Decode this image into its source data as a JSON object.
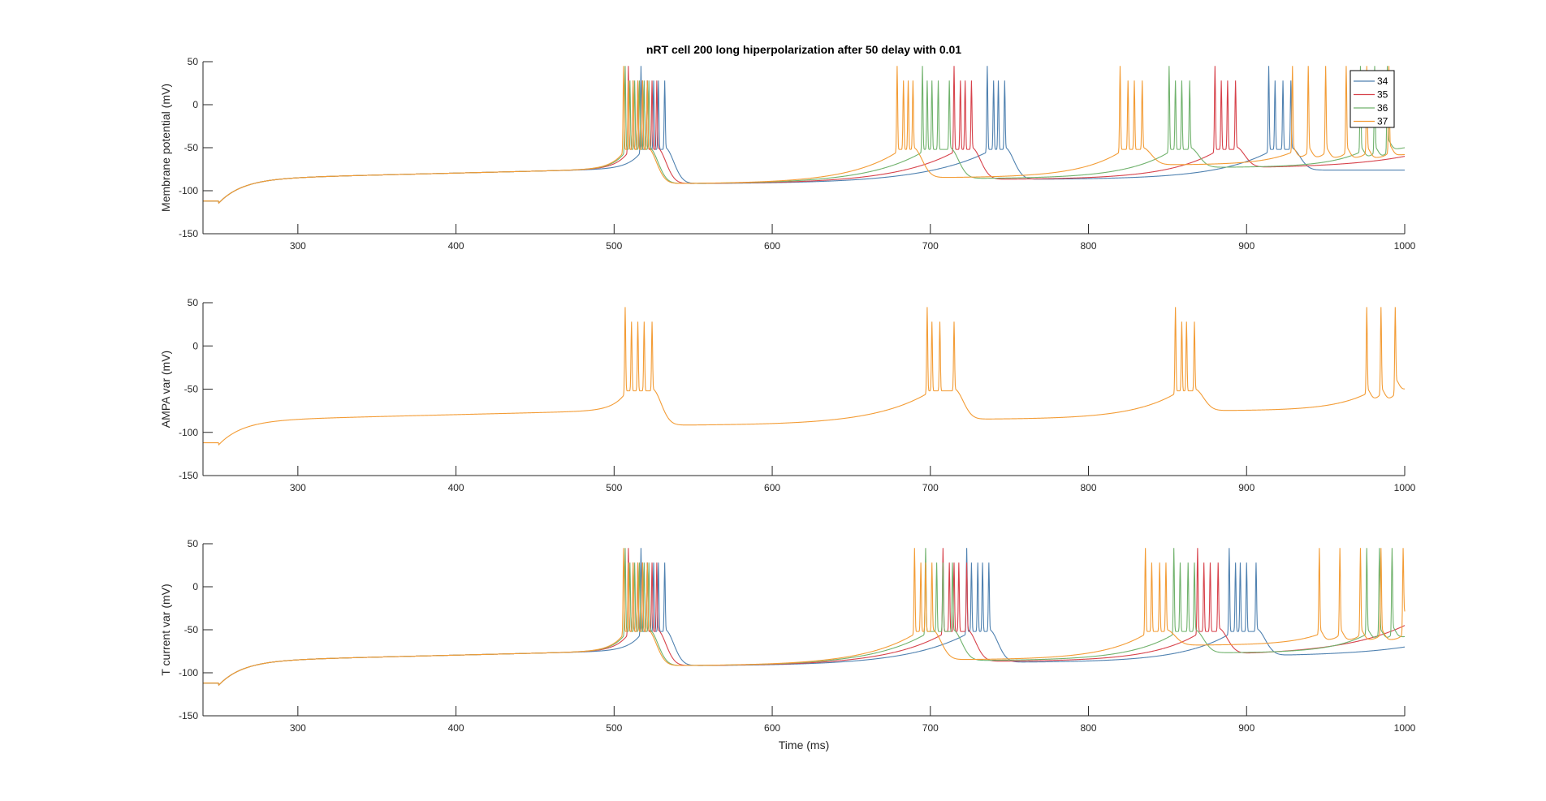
{
  "chart_data": {
    "type": "line",
    "title": "nRT cell 200 long hiperpolarization after 50 delay with 0.01",
    "xlabel": "Time (ms)",
    "xlim": [
      240,
      1000
    ],
    "xticks": [
      300,
      400,
      500,
      600,
      700,
      800,
      900,
      1000
    ],
    "ylim": [
      -150,
      50
    ],
    "yticks": [
      -150,
      -100,
      -50,
      0,
      50
    ],
    "legend": {
      "placement": "top-right",
      "entries": [
        "34",
        "35",
        "36",
        "37"
      ]
    },
    "colors": {
      "34": "#4f81b0",
      "35": "#d7424b",
      "36": "#70b26c",
      "37": "#f39c35"
    },
    "initial_value_mV": -112,
    "spike_peak_mV": 45,
    "panels": [
      {
        "ylabel": "Membrane potential (mV)",
        "series": [
          {
            "name": "34",
            "bursts": [
              {
                "spikes": [
                  517,
                  521,
                  525,
                  528,
                  532
                ],
                "trough": -92
              },
              {
                "spikes": [
                  736,
                  740,
                  743,
                  747
                ],
                "trough": -87
              },
              {
                "spikes": [
                  914,
                  918,
                  923,
                  928
                ],
                "trough": -76
              }
            ],
            "end": -76
          },
          {
            "name": "35",
            "bursts": [
              {
                "spikes": [
                  509,
                  512,
                  515,
                  518,
                  521,
                  524,
                  527
                ],
                "trough": -92
              },
              {
                "spikes": [
                  715,
                  719,
                  722,
                  726
                ],
                "trough": -87
              },
              {
                "spikes": [
                  880,
                  884,
                  888,
                  893
                ],
                "trough": -74
              }
            ],
            "end": -60
          },
          {
            "name": "36",
            "bursts": [
              {
                "spikes": [
                  507,
                  510,
                  513,
                  516,
                  519,
                  522
                ],
                "trough": -92
              },
              {
                "spikes": [
                  695,
                  698,
                  701,
                  705,
                  712
                ],
                "trough": -86
              },
              {
                "spikes": [
                  851,
                  855,
                  859,
                  864
                ],
                "trough": -73
              },
              {
                "spikes": [
                  972
                ],
                "trough": -62
              },
              {
                "spikes": [
                  981
                ],
                "trough": -62
              },
              {
                "spikes": [
                  989
                ],
                "trough": -62
              }
            ],
            "end": -50
          },
          {
            "name": "37",
            "bursts": [
              {
                "spikes": [
                  506,
                  509,
                  512,
                  515,
                  518,
                  521
                ],
                "trough": -92
              },
              {
                "spikes": [
                  679,
                  683,
                  686,
                  689
                ],
                "trough": -85
              },
              {
                "spikes": [
                  820,
                  825,
                  829,
                  834
                ],
                "trough": -70
              },
              {
                "spikes": [
                  929
                ],
                "trough": -62
              },
              {
                "spikes": [
                  939
                ],
                "trough": -62
              },
              {
                "spikes": [
                  950
                ],
                "trough": -62
              },
              {
                "spikes": [
                  963
                ],
                "trough": -62
              },
              {
                "spikes": [
                  976
                ],
                "trough": -62
              },
              {
                "spikes": [
                  990
                ],
                "trough": -62
              }
            ],
            "end": -58
          }
        ]
      },
      {
        "ylabel": "AMPA var (mV)",
        "series": [
          {
            "name": "37",
            "bursts": [
              {
                "spikes": [
                  507,
                  511,
                  515,
                  519,
                  524
                ],
                "trough": -92
              },
              {
                "spikes": [
                  698,
                  701,
                  706,
                  715
                ],
                "trough": -85
              },
              {
                "spikes": [
                  855,
                  859,
                  862,
                  867
                ],
                "trough": -75
              },
              {
                "spikes": [
                  976
                ],
                "trough": -63
              },
              {
                "spikes": [
                  985
                ],
                "trough": -63
              },
              {
                "spikes": [
                  994
                ],
                "trough": -63
              }
            ],
            "end": -50
          }
        ]
      },
      {
        "ylabel": "T current var (mV)",
        "series": [
          {
            "name": "34",
            "bursts": [
              {
                "spikes": [
                  517,
                  521,
                  525,
                  528,
                  532
                ],
                "trough": -92
              },
              {
                "spikes": [
                  723,
                  726,
                  730,
                  733,
                  737
                ],
                "trough": -88
              },
              {
                "spikes": [
                  889,
                  893,
                  896,
                  900,
                  906
                ],
                "trough": -81
              }
            ],
            "end": -70
          },
          {
            "name": "35",
            "bursts": [
              {
                "spikes": [
                  509,
                  512,
                  515,
                  518,
                  521,
                  524,
                  527
                ],
                "trough": -92
              },
              {
                "spikes": [
                  708,
                  712,
                  715,
                  718,
                  723
                ],
                "trough": -87
              },
              {
                "spikes": [
                  869,
                  873,
                  877,
                  882
                ],
                "trough": -80
              }
            ],
            "end": -45
          },
          {
            "name": "36",
            "bursts": [
              {
                "spikes": [
                  507,
                  510,
                  513,
                  516,
                  519,
                  522
                ],
                "trough": -92
              },
              {
                "spikes": [
                  697,
                  704,
                  708,
                  714
                ],
                "trough": -86
              },
              {
                "spikes": [
                  854,
                  858,
                  863,
                  867
                ],
                "trough": -77
              },
              {
                "spikes": [
                  976
                ],
                "trough": -62
              },
              {
                "spikes": [
                  984
                ],
                "trough": -62
              },
              {
                "spikes": [
                  992
                ],
                "trough": -62
              }
            ],
            "end": -58
          },
          {
            "name": "37",
            "bursts": [
              {
                "spikes": [
                  506,
                  509,
                  512,
                  515,
                  518,
                  521
                ],
                "trough": -92
              },
              {
                "spikes": [
                  690,
                  694,
                  697,
                  701
                ],
                "trough": -85
              },
              {
                "spikes": [
                  836,
                  840,
                  845,
                  849
                ],
                "trough": -68
              },
              {
                "spikes": [
                  946
                ],
                "trough": -62
              },
              {
                "spikes": [
                  959
                ],
                "trough": -62
              },
              {
                "spikes": [
                  972
                ],
                "trough": -62
              },
              {
                "spikes": [
                  985
                ],
                "trough": -62
              },
              {
                "spikes": [
                  999
                ],
                "trough": -62
              }
            ],
            "end": -40
          }
        ]
      }
    ]
  }
}
